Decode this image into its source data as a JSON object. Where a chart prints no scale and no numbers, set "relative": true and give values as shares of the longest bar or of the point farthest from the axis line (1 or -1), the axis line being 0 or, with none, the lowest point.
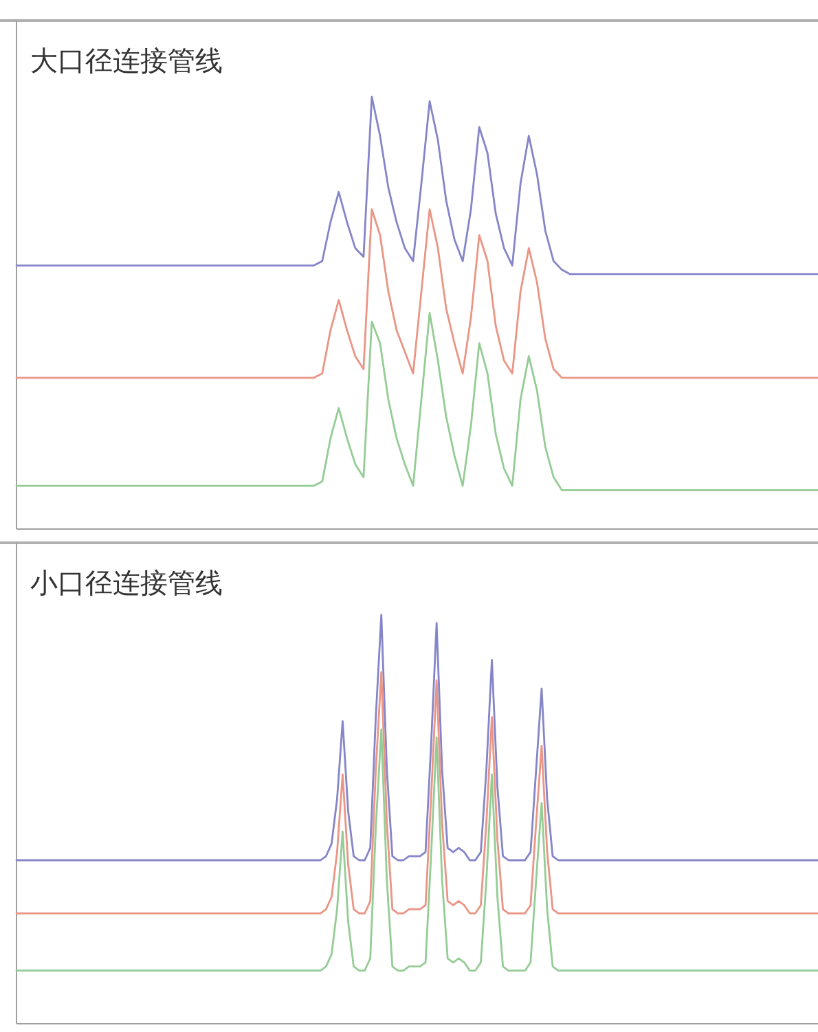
{
  "chart_data": [
    {
      "type": "line",
      "title": "大口径连接管线",
      "relative": true,
      "categories": [
        null,
        null,
        null,
        null,
        null,
        null,
        null,
        null,
        null,
        null,
        null,
        null,
        null,
        null,
        null,
        null,
        null,
        null,
        null,
        null,
        null,
        null,
        null,
        null,
        null,
        null,
        null,
        null,
        null,
        null,
        null,
        null,
        null,
        null,
        null,
        null,
        null,
        null,
        null,
        null,
        null,
        null,
        null,
        null,
        null,
        null,
        null,
        null,
        null,
        null,
        null,
        null,
        null,
        null,
        null,
        null,
        null,
        null,
        null,
        null,
        null,
        null,
        null,
        null,
        null,
        null,
        null,
        null,
        null,
        null,
        null,
        null,
        null,
        null,
        null,
        null,
        null,
        null,
        null,
        null,
        null,
        null,
        null,
        null,
        null,
        null,
        null,
        null,
        null,
        null,
        null,
        null,
        null,
        null,
        null,
        null,
        null,
        null
      ],
      "series": [
        {
          "color": "#8585c9",
          "values": [
            0.61,
            0.61,
            0.61,
            0.61,
            0.61,
            0.61,
            0.61,
            0.61,
            0.61,
            0.61,
            0.61,
            0.61,
            0.61,
            0.61,
            0.61,
            0.61,
            0.61,
            0.61,
            0.61,
            0.61,
            0.61,
            0.61,
            0.61,
            0.61,
            0.61,
            0.61,
            0.61,
            0.61,
            0.61,
            0.61,
            0.61,
            0.61,
            0.61,
            0.61,
            0.61,
            0.61,
            0.61,
            0.62,
            0.71,
            0.78,
            0.71,
            0.65,
            0.63,
            1,
            0.91,
            0.79,
            0.71,
            0.65,
            0.62,
            0.8,
            0.99,
            0.9,
            0.76,
            0.67,
            0.62,
            0.74,
            0.93,
            0.87,
            0.73,
            0.65,
            0.61,
            0.8,
            0.91,
            0.82,
            0.69,
            0.62,
            0.6,
            0.59,
            0.59,
            0.59,
            0.59,
            0.59,
            0.59,
            0.59,
            0.59,
            0.59,
            0.59,
            0.59,
            0.59,
            0.59,
            0.59,
            0.59,
            0.59,
            0.59,
            0.59,
            0.59,
            0.59,
            0.59,
            0.59,
            0.59,
            0.59,
            0.59,
            0.59,
            0.59,
            0.59,
            0.59,
            0.59,
            0.59
          ]
        },
        {
          "color": "#ea9585",
          "values": [
            0.35,
            0.35,
            0.35,
            0.35,
            0.35,
            0.35,
            0.35,
            0.35,
            0.35,
            0.35,
            0.35,
            0.35,
            0.35,
            0.35,
            0.35,
            0.35,
            0.35,
            0.35,
            0.35,
            0.35,
            0.35,
            0.35,
            0.35,
            0.35,
            0.35,
            0.35,
            0.35,
            0.35,
            0.35,
            0.35,
            0.35,
            0.35,
            0.35,
            0.35,
            0.35,
            0.35,
            0.35,
            0.36,
            0.46,
            0.53,
            0.46,
            0.4,
            0.37,
            0.74,
            0.68,
            0.55,
            0.46,
            0.41,
            0.36,
            0.55,
            0.74,
            0.65,
            0.51,
            0.43,
            0.36,
            0.49,
            0.68,
            0.62,
            0.47,
            0.39,
            0.36,
            0.55,
            0.65,
            0.57,
            0.44,
            0.37,
            0.35,
            0.35,
            0.35,
            0.35,
            0.35,
            0.35,
            0.35,
            0.35,
            0.35,
            0.35,
            0.35,
            0.35,
            0.35,
            0.35,
            0.35,
            0.35,
            0.35,
            0.35,
            0.35,
            0.35,
            0.35,
            0.35,
            0.35,
            0.35,
            0.35,
            0.35,
            0.35,
            0.35,
            0.35,
            0.35,
            0.35,
            0.35
          ]
        },
        {
          "color": "#95cc95",
          "values": [
            0.1,
            0.1,
            0.1,
            0.1,
            0.1,
            0.1,
            0.1,
            0.1,
            0.1,
            0.1,
            0.1,
            0.1,
            0.1,
            0.1,
            0.1,
            0.1,
            0.1,
            0.1,
            0.1,
            0.1,
            0.1,
            0.1,
            0.1,
            0.1,
            0.1,
            0.1,
            0.1,
            0.1,
            0.1,
            0.1,
            0.1,
            0.1,
            0.1,
            0.1,
            0.1,
            0.1,
            0.1,
            0.11,
            0.21,
            0.28,
            0.21,
            0.15,
            0.12,
            0.48,
            0.43,
            0.3,
            0.21,
            0.15,
            0.1,
            0.3,
            0.5,
            0.39,
            0.26,
            0.17,
            0.1,
            0.24,
            0.43,
            0.36,
            0.22,
            0.14,
            0.1,
            0.3,
            0.4,
            0.32,
            0.19,
            0.12,
            0.09,
            0.09,
            0.09,
            0.09,
            0.09,
            0.09,
            0.09,
            0.09,
            0.09,
            0.09,
            0.09,
            0.09,
            0.09,
            0.09,
            0.09,
            0.09,
            0.09,
            0.09,
            0.09,
            0.09,
            0.09,
            0.09,
            0.09,
            0.09,
            0.09,
            0.09,
            0.09,
            0.09,
            0.09,
            0.09,
            0.09,
            0.09
          ]
        }
      ]
    },
    {
      "type": "line",
      "title": "小口径连接管线",
      "relative": true,
      "categories": [
        null,
        null,
        null,
        null,
        null,
        null,
        null,
        null,
        null,
        null,
        null,
        null,
        null,
        null,
        null,
        null,
        null,
        null,
        null,
        null,
        null,
        null,
        null,
        null,
        null,
        null,
        null,
        null,
        null,
        null,
        null,
        null,
        null,
        null,
        null,
        null,
        null,
        null,
        null,
        null,
        null,
        null,
        null,
        null,
        null,
        null,
        null,
        null,
        null,
        null,
        null,
        null,
        null,
        null,
        null,
        null,
        null,
        null,
        null,
        null,
        null,
        null,
        null,
        null,
        null,
        null,
        null,
        null,
        null,
        null,
        null,
        null,
        null,
        null,
        null,
        null,
        null,
        null,
        null,
        null,
        null,
        null,
        null,
        null,
        null,
        null,
        null,
        null,
        null,
        null,
        null,
        null,
        null,
        null,
        null,
        null,
        null,
        null,
        null,
        null,
        null,
        null,
        null,
        null,
        null,
        null,
        null,
        null,
        null,
        null,
        null,
        null,
        null,
        null,
        null,
        null,
        null,
        null,
        null,
        null,
        null,
        null,
        null,
        null,
        null,
        null,
        null,
        null,
        null,
        null,
        null,
        null,
        null,
        null,
        null,
        null,
        null,
        null,
        null,
        null,
        null,
        null,
        null,
        null,
        null,
        null
      ],
      "series": [
        {
          "color": "#8585c9",
          "values": [
            0.4,
            0.4,
            0.4,
            0.4,
            0.4,
            0.4,
            0.4,
            0.4,
            0.4,
            0.4,
            0.4,
            0.4,
            0.4,
            0.4,
            0.4,
            0.4,
            0.4,
            0.4,
            0.4,
            0.4,
            0.4,
            0.4,
            0.4,
            0.4,
            0.4,
            0.4,
            0.4,
            0.4,
            0.4,
            0.4,
            0.4,
            0.4,
            0.4,
            0.4,
            0.4,
            0.4,
            0.4,
            0.4,
            0.4,
            0.4,
            0.4,
            0.4,
            0.4,
            0.4,
            0.4,
            0.4,
            0.4,
            0.4,
            0.4,
            0.4,
            0.4,
            0.4,
            0.4,
            0.4,
            0.4,
            0.4,
            0.41,
            0.44,
            0.55,
            0.74,
            0.52,
            0.41,
            0.4,
            0.4,
            0.43,
            0.75,
            1,
            0.62,
            0.41,
            0.4,
            0.4,
            0.41,
            0.41,
            0.41,
            0.42,
            0.68,
            0.98,
            0.62,
            0.43,
            0.42,
            0.43,
            0.42,
            0.4,
            0.4,
            0.42,
            0.62,
            0.89,
            0.58,
            0.41,
            0.4,
            0.4,
            0.4,
            0.4,
            0.42,
            0.62,
            0.82,
            0.55,
            0.41,
            0.4,
            0.4,
            0.4,
            0.4,
            0.4,
            0.4,
            0.4,
            0.4,
            0.4,
            0.4,
            0.4,
            0.4,
            0.4,
            0.4,
            0.4,
            0.4,
            0.4,
            0.4,
            0.4,
            0.4,
            0.4,
            0.4,
            0.4,
            0.4,
            0.4,
            0.4,
            0.4,
            0.4,
            0.4,
            0.4,
            0.4,
            0.4,
            0.4,
            0.4,
            0.4,
            0.4,
            0.4,
            0.4,
            0.4,
            0.4,
            0.4,
            0.4,
            0.4,
            0.4,
            0.4,
            0.4,
            0.4,
            0.4
          ]
        },
        {
          "color": "#ea9585",
          "values": [
            0.27,
            0.27,
            0.27,
            0.27,
            0.27,
            0.27,
            0.27,
            0.27,
            0.27,
            0.27,
            0.27,
            0.27,
            0.27,
            0.27,
            0.27,
            0.27,
            0.27,
            0.27,
            0.27,
            0.27,
            0.27,
            0.27,
            0.27,
            0.27,
            0.27,
            0.27,
            0.27,
            0.27,
            0.27,
            0.27,
            0.27,
            0.27,
            0.27,
            0.27,
            0.27,
            0.27,
            0.27,
            0.27,
            0.27,
            0.27,
            0.27,
            0.27,
            0.27,
            0.27,
            0.27,
            0.27,
            0.27,
            0.27,
            0.27,
            0.27,
            0.27,
            0.27,
            0.27,
            0.27,
            0.27,
            0.27,
            0.28,
            0.31,
            0.42,
            0.61,
            0.39,
            0.28,
            0.27,
            0.27,
            0.3,
            0.62,
            0.86,
            0.49,
            0.28,
            0.27,
            0.27,
            0.28,
            0.28,
            0.28,
            0.29,
            0.55,
            0.84,
            0.49,
            0.3,
            0.29,
            0.3,
            0.29,
            0.27,
            0.27,
            0.29,
            0.49,
            0.75,
            0.45,
            0.28,
            0.27,
            0.27,
            0.27,
            0.27,
            0.29,
            0.49,
            0.68,
            0.42,
            0.28,
            0.27,
            0.27,
            0.27,
            0.27,
            0.27,
            0.27,
            0.27,
            0.27,
            0.27,
            0.27,
            0.27,
            0.27,
            0.27,
            0.27,
            0.27,
            0.27,
            0.27,
            0.27,
            0.27,
            0.27,
            0.27,
            0.27,
            0.27,
            0.27,
            0.27,
            0.27,
            0.27,
            0.27,
            0.27,
            0.27,
            0.27,
            0.27,
            0.27,
            0.27,
            0.27,
            0.27,
            0.27,
            0.27,
            0.27,
            0.27,
            0.27,
            0.27,
            0.27,
            0.27,
            0.27,
            0.27,
            0.27,
            0.27
          ]
        },
        {
          "color": "#95cc95",
          "values": [
            0.13,
            0.13,
            0.13,
            0.13,
            0.13,
            0.13,
            0.13,
            0.13,
            0.13,
            0.13,
            0.13,
            0.13,
            0.13,
            0.13,
            0.13,
            0.13,
            0.13,
            0.13,
            0.13,
            0.13,
            0.13,
            0.13,
            0.13,
            0.13,
            0.13,
            0.13,
            0.13,
            0.13,
            0.13,
            0.13,
            0.13,
            0.13,
            0.13,
            0.13,
            0.13,
            0.13,
            0.13,
            0.13,
            0.13,
            0.13,
            0.13,
            0.13,
            0.13,
            0.13,
            0.13,
            0.13,
            0.13,
            0.13,
            0.13,
            0.13,
            0.13,
            0.13,
            0.13,
            0.13,
            0.13,
            0.13,
            0.14,
            0.17,
            0.28,
            0.47,
            0.25,
            0.14,
            0.13,
            0.13,
            0.16,
            0.48,
            0.72,
            0.35,
            0.14,
            0.13,
            0.13,
            0.14,
            0.14,
            0.14,
            0.15,
            0.41,
            0.7,
            0.35,
            0.16,
            0.15,
            0.16,
            0.15,
            0.13,
            0.13,
            0.15,
            0.35,
            0.61,
            0.31,
            0.14,
            0.13,
            0.13,
            0.13,
            0.13,
            0.15,
            0.35,
            0.54,
            0.28,
            0.14,
            0.13,
            0.13,
            0.13,
            0.13,
            0.13,
            0.13,
            0.13,
            0.13,
            0.13,
            0.13,
            0.13,
            0.13,
            0.13,
            0.13,
            0.13,
            0.13,
            0.13,
            0.13,
            0.13,
            0.13,
            0.13,
            0.13,
            0.13,
            0.13,
            0.13,
            0.13,
            0.13,
            0.13,
            0.13,
            0.13,
            0.13,
            0.13,
            0.13,
            0.13,
            0.13,
            0.13,
            0.13,
            0.13,
            0.13,
            0.13,
            0.13,
            0.13,
            0.13,
            0.13,
            0.13,
            0.13,
            0.13,
            0.13
          ]
        }
      ]
    }
  ]
}
